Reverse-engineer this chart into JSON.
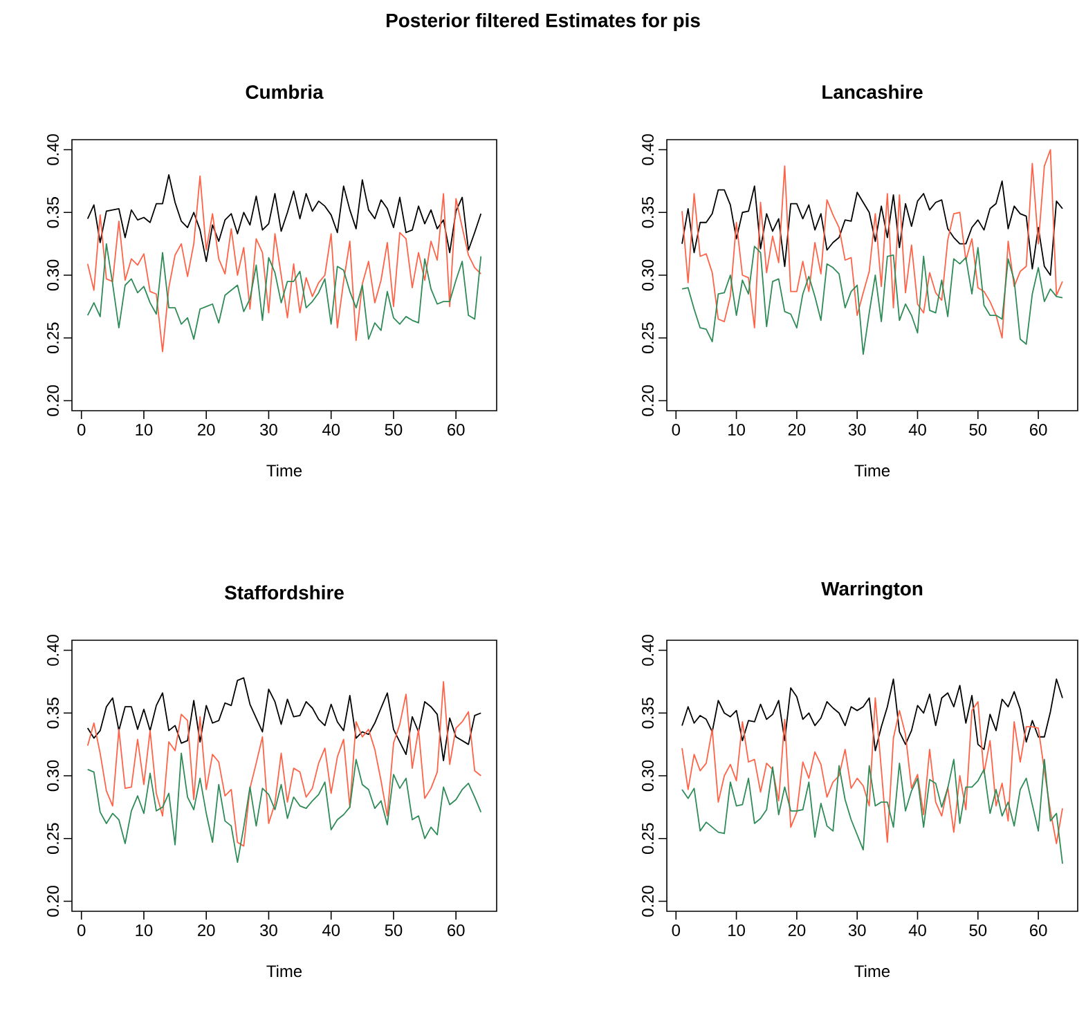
{
  "chart_data": [
    {
      "type": "other",
      "title": "Posterior filtered Estimates for pis"
    },
    {
      "type": "line",
      "title": "Cumbria",
      "xlabel": "Time",
      "x": [
        1,
        2,
        3,
        4,
        5,
        6,
        7,
        8,
        9,
        10,
        11,
        12,
        13,
        14,
        15,
        16,
        17,
        18,
        19,
        20,
        21,
        22,
        23,
        24,
        25,
        26,
        27,
        28,
        29,
        30,
        31,
        32,
        33,
        34,
        35,
        36,
        37,
        38,
        39,
        40,
        41,
        42,
        43,
        44,
        45,
        46,
        47,
        48,
        49,
        50,
        51,
        52,
        53,
        54,
        55,
        56,
        57,
        58,
        59,
        60,
        61,
        62,
        63,
        64
      ],
      "xlim": [
        -1.52,
        66.52
      ],
      "xticks": [
        0,
        10,
        20,
        30,
        40,
        50,
        60
      ],
      "ylim": [
        0.192,
        0.408
      ],
      "yticks": [
        {
          "value": 0.2,
          "label": "0.20"
        },
        {
          "value": 0.25,
          "label": "0.25"
        },
        {
          "value": 0.3,
          "label": "0.30"
        },
        {
          "value": 0.35,
          "label": "0.35"
        },
        {
          "value": 0.4,
          "label": "0.40"
        }
      ],
      "series": [
        {
          "color": "#000000",
          "values": [
            0.345,
            0.356,
            0.326,
            0.351,
            0.352,
            0.353,
            0.33,
            0.352,
            0.344,
            0.346,
            0.342,
            0.357,
            0.357,
            0.38,
            0.358,
            0.343,
            0.338,
            0.35,
            0.336,
            0.311,
            0.34,
            0.327,
            0.344,
            0.349,
            0.333,
            0.35,
            0.34,
            0.363,
            0.336,
            0.341,
            0.365,
            0.335,
            0.35,
            0.367,
            0.345,
            0.365,
            0.351,
            0.359,
            0.355,
            0.348,
            0.334,
            0.371,
            0.352,
            0.337,
            0.376,
            0.352,
            0.345,
            0.36,
            0.353,
            0.338,
            0.362,
            0.334,
            0.336,
            0.355,
            0.341,
            0.352,
            0.337,
            0.344,
            0.318,
            0.351,
            0.362,
            0.32,
            0.334,
            0.349
          ]
        },
        {
          "color": "#ff6347",
          "values": [
            0.309,
            0.288,
            0.348,
            0.297,
            0.295,
            0.343,
            0.296,
            0.313,
            0.308,
            0.317,
            0.287,
            0.285,
            0.239,
            0.29,
            0.316,
            0.325,
            0.299,
            0.325,
            0.379,
            0.32,
            0.349,
            0.313,
            0.301,
            0.337,
            0.3,
            0.322,
            0.273,
            0.329,
            0.318,
            0.27,
            0.333,
            0.3,
            0.266,
            0.309,
            0.27,
            0.298,
            0.283,
            0.294,
            0.3,
            0.333,
            0.258,
            0.295,
            0.327,
            0.248,
            0.293,
            0.311,
            0.278,
            0.296,
            0.326,
            0.275,
            0.334,
            0.329,
            0.29,
            0.318,
            0.296,
            0.327,
            0.312,
            0.365,
            0.275,
            0.361,
            0.338,
            0.316,
            0.306,
            0.301
          ]
        },
        {
          "color": "#2e8b57",
          "values": [
            0.268,
            0.278,
            0.267,
            0.325,
            0.293,
            0.258,
            0.292,
            0.297,
            0.286,
            0.291,
            0.278,
            0.269,
            0.318,
            0.274,
            0.274,
            0.261,
            0.266,
            0.249,
            0.273,
            0.275,
            0.277,
            0.262,
            0.284,
            0.288,
            0.292,
            0.271,
            0.281,
            0.308,
            0.264,
            0.314,
            0.302,
            0.278,
            0.295,
            0.295,
            0.303,
            0.274,
            0.279,
            0.286,
            0.297,
            0.261,
            0.307,
            0.304,
            0.287,
            0.274,
            0.292,
            0.249,
            0.262,
            0.256,
            0.287,
            0.266,
            0.261,
            0.267,
            0.264,
            0.262,
            0.313,
            0.289,
            0.277,
            0.279,
            0.279,
            0.296,
            0.311,
            0.268,
            0.265,
            0.315
          ]
        }
      ]
    },
    {
      "type": "line",
      "title": "Lancashire",
      "xlabel": "Time",
      "x": [
        1,
        2,
        3,
        4,
        5,
        6,
        7,
        8,
        9,
        10,
        11,
        12,
        13,
        14,
        15,
        16,
        17,
        18,
        19,
        20,
        21,
        22,
        23,
        24,
        25,
        26,
        27,
        28,
        29,
        30,
        31,
        32,
        33,
        34,
        35,
        36,
        37,
        38,
        39,
        40,
        41,
        42,
        43,
        44,
        45,
        46,
        47,
        48,
        49,
        50,
        51,
        52,
        53,
        54,
        55,
        56,
        57,
        58,
        59,
        60,
        61,
        62,
        63,
        64
      ],
      "xlim": [
        -1.52,
        66.52
      ],
      "xticks": [
        0,
        10,
        20,
        30,
        40,
        50,
        60
      ],
      "ylim": [
        0.192,
        0.408
      ],
      "yticks": [
        {
          "value": 0.2,
          "label": "0.20"
        },
        {
          "value": 0.25,
          "label": "0.25"
        },
        {
          "value": 0.3,
          "label": "0.30"
        },
        {
          "value": 0.35,
          "label": "0.35"
        },
        {
          "value": 0.4,
          "label": "0.40"
        }
      ],
      "series": [
        {
          "color": "#000000",
          "values": [
            0.325,
            0.353,
            0.318,
            0.342,
            0.342,
            0.349,
            0.368,
            0.368,
            0.356,
            0.329,
            0.35,
            0.351,
            0.371,
            0.321,
            0.349,
            0.335,
            0.345,
            0.307,
            0.357,
            0.357,
            0.345,
            0.356,
            0.336,
            0.349,
            0.32,
            0.326,
            0.33,
            0.344,
            0.343,
            0.366,
            0.358,
            0.35,
            0.327,
            0.355,
            0.33,
            0.364,
            0.322,
            0.357,
            0.339,
            0.359,
            0.365,
            0.352,
            0.358,
            0.36,
            0.337,
            0.33,
            0.325,
            0.325,
            0.338,
            0.344,
            0.336,
            0.353,
            0.357,
            0.375,
            0.337,
            0.355,
            0.349,
            0.347,
            0.305,
            0.338,
            0.307,
            0.3,
            0.359,
            0.353
          ]
        },
        {
          "color": "#ff6347",
          "values": [
            0.351,
            0.294,
            0.365,
            0.315,
            0.317,
            0.302,
            0.265,
            0.263,
            0.283,
            0.342,
            0.3,
            0.298,
            0.258,
            0.358,
            0.302,
            0.331,
            0.31,
            0.387,
            0.287,
            0.287,
            0.311,
            0.287,
            0.326,
            0.301,
            0.36,
            0.348,
            0.338,
            0.312,
            0.314,
            0.268,
            0.286,
            0.303,
            0.349,
            0.291,
            0.365,
            0.274,
            0.364,
            0.286,
            0.324,
            0.277,
            0.27,
            0.302,
            0.286,
            0.28,
            0.328,
            0.349,
            0.35,
            0.312,
            0.329,
            0.29,
            0.287,
            0.279,
            0.268,
            0.25,
            0.327,
            0.291,
            0.303,
            0.307,
            0.389,
            0.325,
            0.387,
            0.4,
            0.284,
            0.295
          ]
        },
        {
          "color": "#2e8b57",
          "values": [
            0.289,
            0.29,
            0.273,
            0.258,
            0.257,
            0.247,
            0.285,
            0.286,
            0.3,
            0.268,
            0.296,
            0.285,
            0.323,
            0.318,
            0.259,
            0.295,
            0.297,
            0.271,
            0.269,
            0.258,
            0.285,
            0.299,
            0.283,
            0.264,
            0.309,
            0.306,
            0.301,
            0.274,
            0.287,
            0.292,
            0.237,
            0.27,
            0.3,
            0.263,
            0.315,
            0.316,
            0.264,
            0.277,
            0.268,
            0.254,
            0.315,
            0.272,
            0.27,
            0.296,
            0.267,
            0.313,
            0.309,
            0.314,
            0.285,
            0.322,
            0.276,
            0.268,
            0.268,
            0.265,
            0.313,
            0.296,
            0.249,
            0.245,
            0.285,
            0.306,
            0.279,
            0.289,
            0.283,
            0.282
          ]
        }
      ]
    },
    {
      "type": "line",
      "title": "Staffordshire",
      "xlabel": "Time",
      "x": [
        1,
        2,
        3,
        4,
        5,
        6,
        7,
        8,
        9,
        10,
        11,
        12,
        13,
        14,
        15,
        16,
        17,
        18,
        19,
        20,
        21,
        22,
        23,
        24,
        25,
        26,
        27,
        28,
        29,
        30,
        31,
        32,
        33,
        34,
        35,
        36,
        37,
        38,
        39,
        40,
        41,
        42,
        43,
        44,
        45,
        46,
        47,
        48,
        49,
        50,
        51,
        52,
        53,
        54,
        55,
        56,
        57,
        58,
        59,
        60,
        61,
        62,
        63,
        64
      ],
      "xlim": [
        -1.52,
        66.52
      ],
      "xticks": [
        0,
        10,
        20,
        30,
        40,
        50,
        60
      ],
      "ylim": [
        0.192,
        0.408
      ],
      "yticks": [
        {
          "value": 0.2,
          "label": "0.20"
        },
        {
          "value": 0.25,
          "label": "0.25"
        },
        {
          "value": 0.3,
          "label": "0.30"
        },
        {
          "value": 0.35,
          "label": "0.35"
        },
        {
          "value": 0.4,
          "label": "0.40"
        }
      ],
      "series": [
        {
          "color": "#000000",
          "values": [
            0.338,
            0.33,
            0.336,
            0.355,
            0.362,
            0.336,
            0.355,
            0.355,
            0.337,
            0.353,
            0.336,
            0.356,
            0.366,
            0.336,
            0.34,
            0.326,
            0.328,
            0.36,
            0.327,
            0.356,
            0.342,
            0.344,
            0.358,
            0.356,
            0.376,
            0.378,
            0.357,
            0.346,
            0.335,
            0.369,
            0.359,
            0.341,
            0.361,
            0.347,
            0.348,
            0.359,
            0.354,
            0.345,
            0.34,
            0.357,
            0.343,
            0.336,
            0.364,
            0.33,
            0.335,
            0.333,
            0.342,
            0.354,
            0.366,
            0.337,
            0.327,
            0.317,
            0.347,
            0.335,
            0.359,
            0.355,
            0.349,
            0.312,
            0.346,
            0.331,
            0.328,
            0.325,
            0.348,
            0.35
          ]
        },
        {
          "color": "#ff6347",
          "values": [
            0.324,
            0.342,
            0.318,
            0.288,
            0.276,
            0.337,
            0.29,
            0.291,
            0.329,
            0.293,
            0.336,
            0.286,
            0.268,
            0.327,
            0.32,
            0.349,
            0.344,
            0.281,
            0.347,
            0.289,
            0.317,
            0.311,
            0.284,
            0.289,
            0.247,
            0.244,
            0.29,
            0.31,
            0.331,
            0.262,
            0.278,
            0.318,
            0.279,
            0.306,
            0.303,
            0.283,
            0.29,
            0.31,
            0.322,
            0.286,
            0.315,
            0.329,
            0.275,
            0.343,
            0.331,
            0.337,
            0.321,
            0.296,
            0.268,
            0.326,
            0.341,
            0.365,
            0.306,
            0.337,
            0.282,
            0.29,
            0.303,
            0.375,
            0.309,
            0.338,
            0.343,
            0.351,
            0.304,
            0.3
          ]
        },
        {
          "color": "#2e8b57",
          "values": [
            0.305,
            0.303,
            0.271,
            0.262,
            0.27,
            0.265,
            0.246,
            0.272,
            0.284,
            0.27,
            0.302,
            0.272,
            0.275,
            0.286,
            0.245,
            0.318,
            0.283,
            0.273,
            0.298,
            0.27,
            0.247,
            0.293,
            0.264,
            0.26,
            0.231,
            0.259,
            0.291,
            0.26,
            0.29,
            0.285,
            0.273,
            0.293,
            0.266,
            0.283,
            0.276,
            0.274,
            0.28,
            0.285,
            0.295,
            0.257,
            0.265,
            0.269,
            0.275,
            0.313,
            0.293,
            0.289,
            0.274,
            0.28,
            0.261,
            0.301,
            0.29,
            0.298,
            0.265,
            0.268,
            0.25,
            0.259,
            0.253,
            0.291,
            0.277,
            0.281,
            0.289,
            0.294,
            0.283,
            0.271
          ]
        }
      ]
    },
    {
      "type": "line",
      "title": "Warrington",
      "xlabel": "Time",
      "x": [
        1,
        2,
        3,
        4,
        5,
        6,
        7,
        8,
        9,
        10,
        11,
        12,
        13,
        14,
        15,
        16,
        17,
        18,
        19,
        20,
        21,
        22,
        23,
        24,
        25,
        26,
        27,
        28,
        29,
        30,
        31,
        32,
        33,
        34,
        35,
        36,
        37,
        38,
        39,
        40,
        41,
        42,
        43,
        44,
        45,
        46,
        47,
        48,
        49,
        50,
        51,
        52,
        53,
        54,
        55,
        56,
        57,
        58,
        59,
        60,
        61,
        62,
        63,
        64
      ],
      "xlim": [
        -1.52,
        66.52
      ],
      "xticks": [
        0,
        10,
        20,
        30,
        40,
        50,
        60
      ],
      "ylim": [
        0.192,
        0.408
      ],
      "yticks": [
        {
          "value": 0.2,
          "label": "0.20"
        },
        {
          "value": 0.25,
          "label": "0.25"
        },
        {
          "value": 0.3,
          "label": "0.30"
        },
        {
          "value": 0.35,
          "label": "0.35"
        },
        {
          "value": 0.4,
          "label": "0.40"
        }
      ],
      "series": [
        {
          "color": "#000000",
          "values": [
            0.34,
            0.355,
            0.342,
            0.348,
            0.345,
            0.335,
            0.36,
            0.35,
            0.347,
            0.352,
            0.328,
            0.344,
            0.343,
            0.357,
            0.345,
            0.349,
            0.36,
            0.328,
            0.37,
            0.363,
            0.345,
            0.35,
            0.34,
            0.346,
            0.359,
            0.354,
            0.35,
            0.34,
            0.355,
            0.352,
            0.355,
            0.362,
            0.32,
            0.339,
            0.355,
            0.377,
            0.335,
            0.325,
            0.336,
            0.356,
            0.35,
            0.365,
            0.34,
            0.362,
            0.366,
            0.355,
            0.372,
            0.342,
            0.364,
            0.325,
            0.321,
            0.349,
            0.336,
            0.361,
            0.355,
            0.367,
            0.353,
            0.327,
            0.344,
            0.331,
            0.331,
            0.351,
            0.377,
            0.362
          ]
        },
        {
          "color": "#ff6347",
          "values": [
            0.322,
            0.289,
            0.317,
            0.304,
            0.31,
            0.337,
            0.279,
            0.3,
            0.309,
            0.296,
            0.343,
            0.311,
            0.313,
            0.287,
            0.31,
            0.305,
            0.28,
            0.345,
            0.259,
            0.271,
            0.311,
            0.298,
            0.319,
            0.309,
            0.283,
            0.295,
            0.3,
            0.321,
            0.29,
            0.298,
            0.292,
            0.276,
            0.362,
            0.305,
            0.247,
            0.33,
            0.352,
            0.333,
            0.29,
            0.301,
            0.269,
            0.321,
            0.279,
            0.268,
            0.291,
            0.255,
            0.3,
            0.273,
            0.352,
            0.359,
            0.302,
            0.328,
            0.276,
            0.294,
            0.264,
            0.343,
            0.311,
            0.339,
            0.339,
            0.338,
            0.304,
            0.272,
            0.246,
            0.274
          ]
        },
        {
          "color": "#2e8b57",
          "values": [
            0.289,
            0.282,
            0.29,
            0.256,
            0.263,
            0.259,
            0.255,
            0.254,
            0.295,
            0.276,
            0.277,
            0.298,
            0.262,
            0.266,
            0.273,
            0.307,
            0.269,
            0.291,
            0.272,
            0.272,
            0.273,
            0.295,
            0.251,
            0.278,
            0.26,
            0.256,
            0.308,
            0.281,
            0.265,
            0.253,
            0.241,
            0.308,
            0.276,
            0.279,
            0.279,
            0.259,
            0.31,
            0.272,
            0.288,
            0.298,
            0.259,
            0.297,
            0.294,
            0.275,
            0.29,
            0.313,
            0.262,
            0.291,
            0.291,
            0.296,
            0.305,
            0.27,
            0.289,
            0.268,
            0.279,
            0.26,
            0.289,
            0.298,
            0.277,
            0.256,
            0.313,
            0.264,
            0.27,
            0.23
          ]
        }
      ]
    }
  ]
}
